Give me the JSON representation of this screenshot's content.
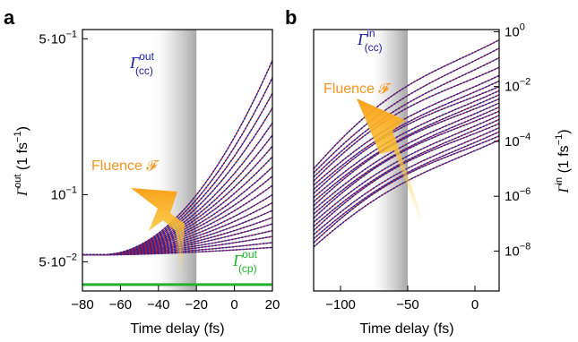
{
  "chart_data": [
    {
      "panel": "a",
      "type": "line",
      "xlabel": "Time delay (fs)",
      "ylabel_main": "Γ",
      "ylabel_sup": "out",
      "ylabel_unit": " (1 fs",
      "ylabel_unit_sup": "−1",
      "ylabel_tail": ")",
      "xlim": [
        -80,
        20
      ],
      "ylim": [
        0.037,
        0.55
      ],
      "yscale": "log",
      "x_ticks": [
        -80,
        -60,
        -40,
        -20,
        0,
        20
      ],
      "y_ticks": [
        {
          "value": 0.5,
          "label_base": "5·10",
          "label_exp": "−1"
        },
        {
          "value": 0.1,
          "label_base": "10",
          "label_exp": "−1"
        },
        {
          "value": 0.05,
          "label_base": "5·10",
          "label_exp": "−2"
        }
      ],
      "shaded_region": [
        -45,
        -20
      ],
      "annotations": {
        "cc_main": "Γ",
        "cc_sup": "out",
        "cc_sub": "(cc)",
        "cc_color": "#1a1aa8",
        "cp_main": "Γ",
        "cp_sup": "out",
        "cp_sub": "(cp)",
        "cp_color": "#22b22a",
        "fluence": "Fluence 𝓕",
        "fluence_color": "#f7941d"
      },
      "baseline": 0.0537,
      "cp_level": 0.0395,
      "onset_x": -70,
      "end_values": [
        0.4,
        0.335,
        0.285,
        0.245,
        0.21,
        0.185,
        0.165,
        0.148,
        0.133,
        0.121,
        0.11,
        0.1,
        0.092,
        0.085,
        0.079,
        0.074,
        0.069,
        0.065,
        0.061,
        0.058
      ]
    },
    {
      "panel": "b",
      "type": "line",
      "xlabel": "Time delay (fs)",
      "ylabel_main": "Γ",
      "ylabel_sup": "in",
      "ylabel_unit": " (1 fs",
      "ylabel_unit_sup": "−1",
      "ylabel_tail": ")",
      "xlim": [
        -120,
        18
      ],
      "ylim": [
        3.5e-10,
        1.2
      ],
      "yscale": "log",
      "x_ticks": [
        -100,
        -50,
        0
      ],
      "y_ticks": [
        {
          "value": 1,
          "label_base": "10",
          "label_exp": "0"
        },
        {
          "value": 0.01,
          "label_base": "10",
          "label_exp": "−2"
        },
        {
          "value": 0.0001,
          "label_base": "10",
          "label_exp": "−4"
        },
        {
          "value": 1e-06,
          "label_base": "10",
          "label_exp": "−6"
        },
        {
          "value": 1e-08,
          "label_base": "10",
          "label_exp": "−8"
        }
      ],
      "shaded_region": [
        -80,
        -50
      ],
      "annotations": {
        "cc_main": "Γ",
        "cc_sup": "in",
        "cc_sub": "(cc)",
        "cc_color": "#1a1aa8",
        "fluence": "Fluence 𝓕",
        "fluence_color": "#f7941d"
      },
      "start_exp": [
        -5.0,
        -5.15,
        -5.3,
        -5.45,
        -5.6,
        -5.75,
        -5.9,
        -6.05,
        -6.2,
        -6.35,
        -6.5,
        -6.65,
        -6.8,
        -6.95,
        -7.1,
        -7.25,
        -7.4,
        -7.55,
        -7.7,
        -7.85
      ],
      "end_exp": [
        -0.3,
        -0.6,
        -0.95,
        -1.3,
        -1.6,
        -1.8,
        -2.0,
        -2.15,
        -2.3,
        -2.45,
        -2.6,
        -2.75,
        -2.9,
        -3.05,
        -3.2,
        -3.35,
        -3.5,
        -3.65,
        -3.8,
        -3.95
      ]
    }
  ]
}
